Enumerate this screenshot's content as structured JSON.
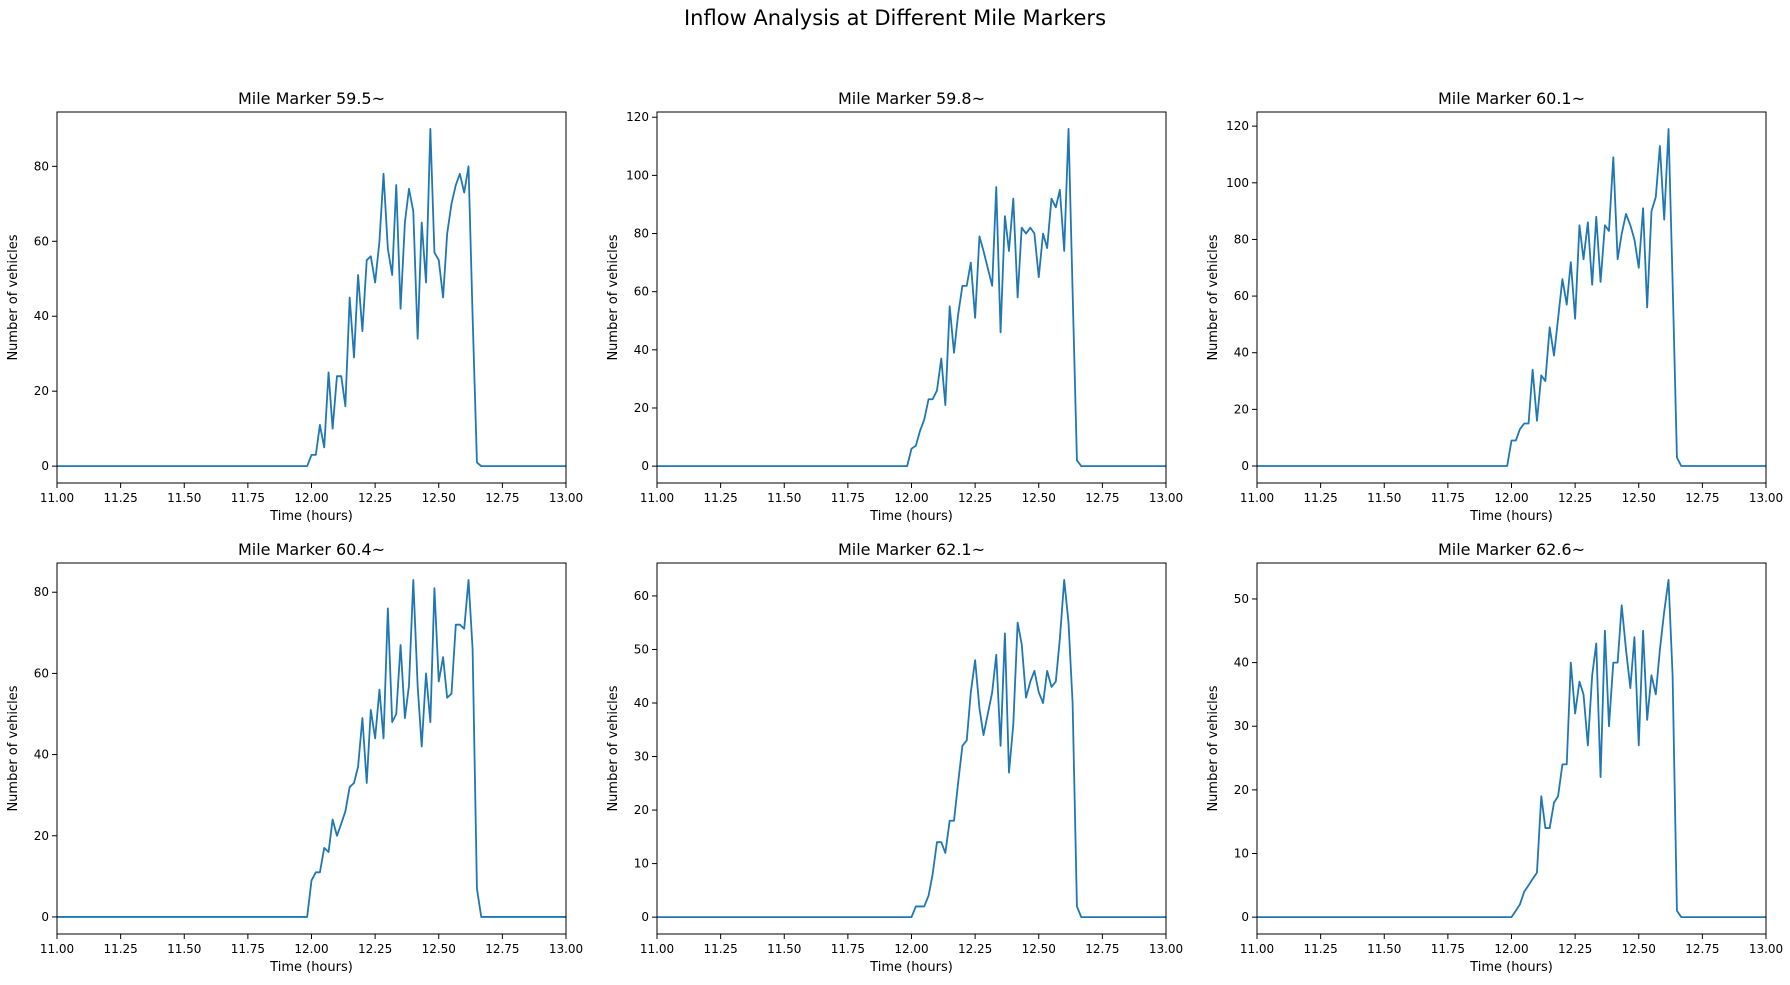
{
  "figure": {
    "title": "Inflow Analysis at Different Mile Markers",
    "line_color": "#1f77b4"
  },
  "chart_data": [
    {
      "type": "line",
      "title": "Mile Marker 59.5~",
      "xlabel": "Time (hours)",
      "ylabel": "Number of vehicles",
      "xlim": [
        11.0,
        13.0
      ],
      "ylim": [
        -4.5,
        94.5
      ],
      "xticks": [
        "11.00",
        "11.25",
        "11.50",
        "11.75",
        "12.00",
        "12.25",
        "12.50",
        "12.75",
        "13.00"
      ],
      "yticks": [
        0,
        20,
        40,
        60,
        80
      ],
      "grid": false,
      "series": [
        {
          "x": [
            11.0,
            11.983,
            12.0,
            12.017,
            12.033,
            12.05,
            12.067,
            12.083,
            12.1,
            12.117,
            12.133,
            12.15,
            12.167,
            12.183,
            12.2,
            12.217,
            12.233,
            12.25,
            12.267,
            12.283,
            12.3,
            12.317,
            12.333,
            12.35,
            12.367,
            12.383,
            12.4,
            12.417,
            12.433,
            12.45,
            12.467,
            12.483,
            12.5,
            12.517,
            12.533,
            12.55,
            12.567,
            12.583,
            12.6,
            12.617,
            12.633,
            12.65,
            12.667,
            13.0
          ],
          "y": [
            0,
            0,
            3,
            3,
            11,
            5,
            25,
            10,
            24,
            24,
            16,
            45,
            29,
            51,
            36,
            55,
            56,
            49,
            60,
            78,
            58,
            51,
            75,
            42,
            65,
            74,
            68,
            34,
            65,
            49,
            90,
            57,
            55,
            45,
            62,
            70,
            75,
            78,
            73,
            80,
            40,
            1,
            0,
            0
          ]
        }
      ]
    },
    {
      "type": "line",
      "title": "Mile Marker 59.8~",
      "xlabel": "Time (hours)",
      "ylabel": "Number of vehicles",
      "xlim": [
        11.0,
        13.0
      ],
      "ylim": [
        -5.8,
        121.8
      ],
      "xticks": [
        "11.00",
        "11.25",
        "11.50",
        "11.75",
        "12.00",
        "12.25",
        "12.50",
        "12.75",
        "13.00"
      ],
      "yticks": [
        0,
        20,
        40,
        60,
        80,
        100,
        120
      ],
      "grid": false,
      "series": [
        {
          "x": [
            11.0,
            11.983,
            12.0,
            12.017,
            12.033,
            12.05,
            12.067,
            12.083,
            12.1,
            12.117,
            12.133,
            12.15,
            12.167,
            12.183,
            12.2,
            12.217,
            12.233,
            12.25,
            12.267,
            12.283,
            12.3,
            12.317,
            12.333,
            12.35,
            12.367,
            12.383,
            12.4,
            12.417,
            12.433,
            12.45,
            12.467,
            12.483,
            12.5,
            12.517,
            12.533,
            12.55,
            12.567,
            12.583,
            12.6,
            12.617,
            12.633,
            12.65,
            12.667,
            13.0
          ],
          "y": [
            0,
            0,
            6,
            7,
            12,
            16,
            23,
            23,
            26,
            37,
            21,
            55,
            39,
            52,
            62,
            62,
            70,
            51,
            79,
            74,
            68,
            62,
            96,
            46,
            86,
            74,
            92,
            58,
            82,
            80,
            82,
            80,
            65,
            80,
            75,
            92,
            89,
            95,
            74,
            116,
            60,
            2,
            0,
            0
          ]
        }
      ]
    },
    {
      "type": "line",
      "title": "Mile Marker 60.1~",
      "xlabel": "Time (hours)",
      "ylabel": "Number of vehicles",
      "xlim": [
        11.0,
        13.0
      ],
      "ylim": [
        -6.0,
        125.0
      ],
      "xticks": [
        "11.00",
        "11.25",
        "11.50",
        "11.75",
        "12.00",
        "12.25",
        "12.50",
        "12.75",
        "13.00"
      ],
      "yticks": [
        0,
        20,
        40,
        60,
        80,
        100,
        120
      ],
      "grid": false,
      "series": [
        {
          "x": [
            11.0,
            11.983,
            12.0,
            12.017,
            12.033,
            12.05,
            12.067,
            12.083,
            12.1,
            12.117,
            12.133,
            12.15,
            12.167,
            12.183,
            12.2,
            12.217,
            12.233,
            12.25,
            12.267,
            12.283,
            12.3,
            12.317,
            12.333,
            12.35,
            12.367,
            12.383,
            12.4,
            12.417,
            12.433,
            12.45,
            12.467,
            12.483,
            12.5,
            12.517,
            12.533,
            12.55,
            12.567,
            12.583,
            12.6,
            12.617,
            12.633,
            12.65,
            12.667,
            13.0
          ],
          "y": [
            0,
            0,
            9,
            9,
            13,
            15,
            15,
            34,
            16,
            32,
            30,
            49,
            39,
            52,
            66,
            57,
            72,
            52,
            85,
            73,
            86,
            64,
            88,
            65,
            85,
            83,
            109,
            73,
            82,
            89,
            85,
            80,
            70,
            91,
            56,
            90,
            95,
            113,
            87,
            119,
            65,
            3,
            0,
            0
          ]
        }
      ]
    },
    {
      "type": "line",
      "title": "Mile Marker 60.4~",
      "xlabel": "Time (hours)",
      "ylabel": "Number of vehicles",
      "xlim": [
        11.0,
        13.0
      ],
      "ylim": [
        -4.2,
        87.2
      ],
      "xticks": [
        "11.00",
        "11.25",
        "11.50",
        "11.75",
        "12.00",
        "12.25",
        "12.50",
        "12.75",
        "13.00"
      ],
      "yticks": [
        0,
        20,
        40,
        60,
        80
      ],
      "grid": false,
      "series": [
        {
          "x": [
            11.0,
            11.983,
            12.0,
            12.017,
            12.033,
            12.05,
            12.067,
            12.083,
            12.1,
            12.117,
            12.133,
            12.15,
            12.167,
            12.183,
            12.2,
            12.217,
            12.233,
            12.25,
            12.267,
            12.283,
            12.3,
            12.317,
            12.333,
            12.35,
            12.367,
            12.383,
            12.4,
            12.417,
            12.433,
            12.45,
            12.467,
            12.483,
            12.5,
            12.517,
            12.533,
            12.55,
            12.567,
            12.583,
            12.6,
            12.617,
            12.633,
            12.65,
            12.667,
            13.0
          ],
          "y": [
            0,
            0,
            9,
            11,
            11,
            17,
            16,
            24,
            20,
            23,
            26,
            32,
            33,
            37,
            49,
            33,
            51,
            44,
            56,
            44,
            76,
            48,
            50,
            67,
            49,
            57,
            83,
            57,
            42,
            60,
            48,
            81,
            58,
            64,
            54,
            55,
            72,
            72,
            71,
            83,
            66,
            7,
            0,
            0
          ]
        }
      ]
    },
    {
      "type": "line",
      "title": "Mile Marker 62.1~",
      "xlabel": "Time (hours)",
      "ylabel": "Number of vehicles",
      "xlim": [
        11.0,
        13.0
      ],
      "ylim": [
        -3.15,
        66.15
      ],
      "xticks": [
        "11.00",
        "11.25",
        "11.50",
        "11.75",
        "12.00",
        "12.25",
        "12.50",
        "12.75",
        "13.00"
      ],
      "yticks": [
        0,
        10,
        20,
        30,
        40,
        50,
        60
      ],
      "grid": false,
      "series": [
        {
          "x": [
            11.0,
            12.0,
            12.017,
            12.033,
            12.05,
            12.067,
            12.083,
            12.1,
            12.117,
            12.133,
            12.15,
            12.167,
            12.183,
            12.2,
            12.217,
            12.233,
            12.25,
            12.267,
            12.283,
            12.3,
            12.317,
            12.333,
            12.35,
            12.367,
            12.383,
            12.4,
            12.417,
            12.433,
            12.45,
            12.467,
            12.483,
            12.5,
            12.517,
            12.533,
            12.55,
            12.567,
            12.583,
            12.6,
            12.617,
            12.633,
            12.65,
            12.667,
            13.0
          ],
          "y": [
            0,
            0,
            2,
            2,
            2,
            4,
            8,
            14,
            14,
            12,
            18,
            18,
            25,
            32,
            33,
            42,
            48,
            39,
            34,
            38,
            42,
            49,
            32,
            53,
            27,
            36,
            55,
            51,
            41,
            44,
            46,
            42,
            40,
            46,
            43,
            44,
            52,
            63,
            55,
            40,
            2,
            0,
            0
          ]
        }
      ]
    },
    {
      "type": "line",
      "title": "Mile Marker 62.6~",
      "xlabel": "Time (hours)",
      "ylabel": "Number of vehicles",
      "xlim": [
        11.0,
        13.0
      ],
      "ylim": [
        -2.65,
        55.65
      ],
      "xticks": [
        "11.00",
        "11.25",
        "11.50",
        "11.75",
        "12.00",
        "12.25",
        "12.50",
        "12.75",
        "13.00"
      ],
      "yticks": [
        0,
        10,
        20,
        30,
        40,
        50
      ],
      "grid": false,
      "series": [
        {
          "x": [
            11.0,
            12.0,
            12.017,
            12.033,
            12.05,
            12.067,
            12.083,
            12.1,
            12.117,
            12.133,
            12.15,
            12.167,
            12.183,
            12.2,
            12.217,
            12.233,
            12.25,
            12.267,
            12.283,
            12.3,
            12.317,
            12.333,
            12.35,
            12.367,
            12.383,
            12.4,
            12.417,
            12.433,
            12.45,
            12.467,
            12.483,
            12.5,
            12.517,
            12.533,
            12.55,
            12.567,
            12.583,
            12.6,
            12.617,
            12.633,
            12.65,
            12.667,
            13.0
          ],
          "y": [
            0,
            0,
            1,
            2,
            4,
            5,
            6,
            7,
            19,
            14,
            14,
            18,
            19,
            24,
            24,
            40,
            32,
            37,
            35,
            27,
            38,
            43,
            22,
            45,
            30,
            40,
            40,
            49,
            42,
            36,
            44,
            27,
            45,
            31,
            38,
            35,
            42,
            48,
            53,
            38,
            1,
            0,
            0
          ]
        }
      ]
    }
  ]
}
